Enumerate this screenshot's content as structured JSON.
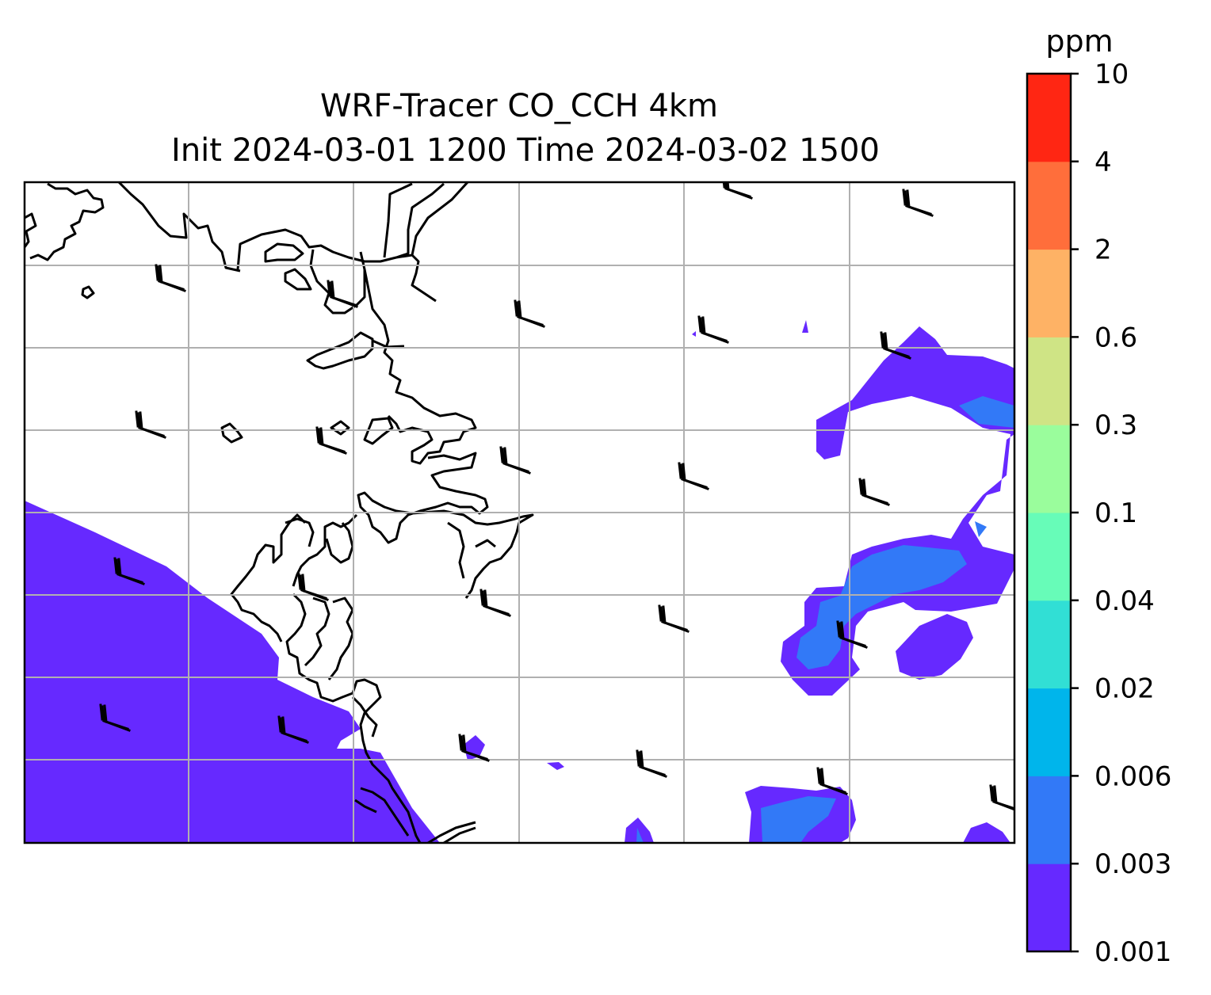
{
  "title": {
    "line1": "WRF-Tracer CO_CCH 4km",
    "line2": "Init 2024-03-01 1200 Time 2024-03-02 1500"
  },
  "colorbar": {
    "unit": "ppm",
    "levels": [
      "0.001",
      "0.003",
      "0.006",
      "0.02",
      "0.04",
      "0.1",
      "0.3",
      "0.6",
      "2",
      "4",
      "10"
    ],
    "colors": [
      "#6629ff",
      "#3279f7",
      "#00b5eb",
      "#31dfd5",
      "#67fcb8",
      "#9afd9c",
      "#cfe485",
      "#feb265",
      "#ff6e3b",
      "#ff2613"
    ]
  },
  "map": {
    "coastline_color": "#000000",
    "gridline_color": "#b0b0b0",
    "wind_barb_color": "#000000"
  }
}
